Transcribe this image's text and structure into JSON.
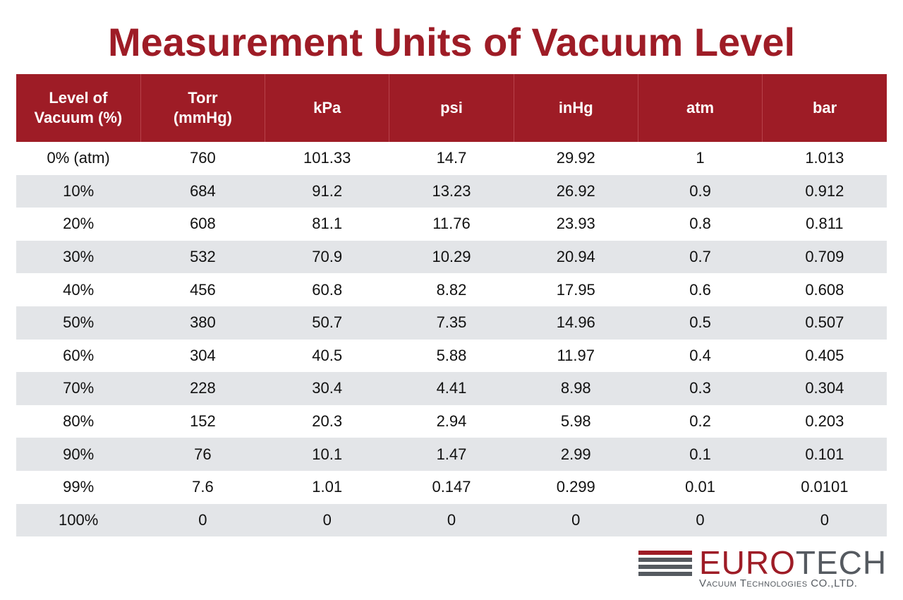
{
  "title": "Measurement Units of Vacuum Level",
  "table": {
    "headers": [
      [
        "Level of",
        "Vacuum (%)"
      ],
      [
        "Torr",
        "(mmHg)"
      ],
      [
        "kPa"
      ],
      [
        "psi"
      ],
      [
        "inHg"
      ],
      [
        "atm"
      ],
      [
        "bar"
      ]
    ],
    "rows": [
      [
        "0% (atm)",
        "760",
        "101.33",
        "14.7",
        "29.92",
        "1",
        "1.013"
      ],
      [
        "10%",
        "684",
        "91.2",
        "13.23",
        "26.92",
        "0.9",
        "0.912"
      ],
      [
        "20%",
        "608",
        "81.1",
        "11.76",
        "23.93",
        "0.8",
        "0.811"
      ],
      [
        "30%",
        "532",
        "70.9",
        "10.29",
        "20.94",
        "0.7",
        "0.709"
      ],
      [
        "40%",
        "456",
        "60.8",
        "8.82",
        "17.95",
        "0.6",
        "0.608"
      ],
      [
        "50%",
        "380",
        "50.7",
        "7.35",
        "14.96",
        "0.5",
        "0.507"
      ],
      [
        "60%",
        "304",
        "40.5",
        "5.88",
        "11.97",
        "0.4",
        "0.405"
      ],
      [
        "70%",
        "228",
        "30.4",
        "4.41",
        "8.98",
        "0.3",
        "0.304"
      ],
      [
        "80%",
        "152",
        "20.3",
        "2.94",
        "5.98",
        "0.2",
        "0.203"
      ],
      [
        "90%",
        "76",
        "10.1",
        "1.47",
        "2.99",
        "0.1",
        "0.101"
      ],
      [
        "99%",
        "7.6",
        "1.01",
        "0.147",
        "0.299",
        "0.01",
        "0.0101"
      ],
      [
        "100%",
        "0",
        "0",
        "0",
        "0",
        "0",
        "0"
      ]
    ]
  },
  "logo": {
    "name_part1": "EURO",
    "name_part2": "TECH",
    "subtitle": "Vacuum Technologies CO.,LTD.",
    "bar_colors": [
      "#9e1c26",
      "#555a60",
      "#555a60",
      "#555a60"
    ]
  },
  "colors": {
    "accent": "#9e1c26",
    "stripe": "#e3e5e8",
    "logo_gray": "#555a60"
  }
}
